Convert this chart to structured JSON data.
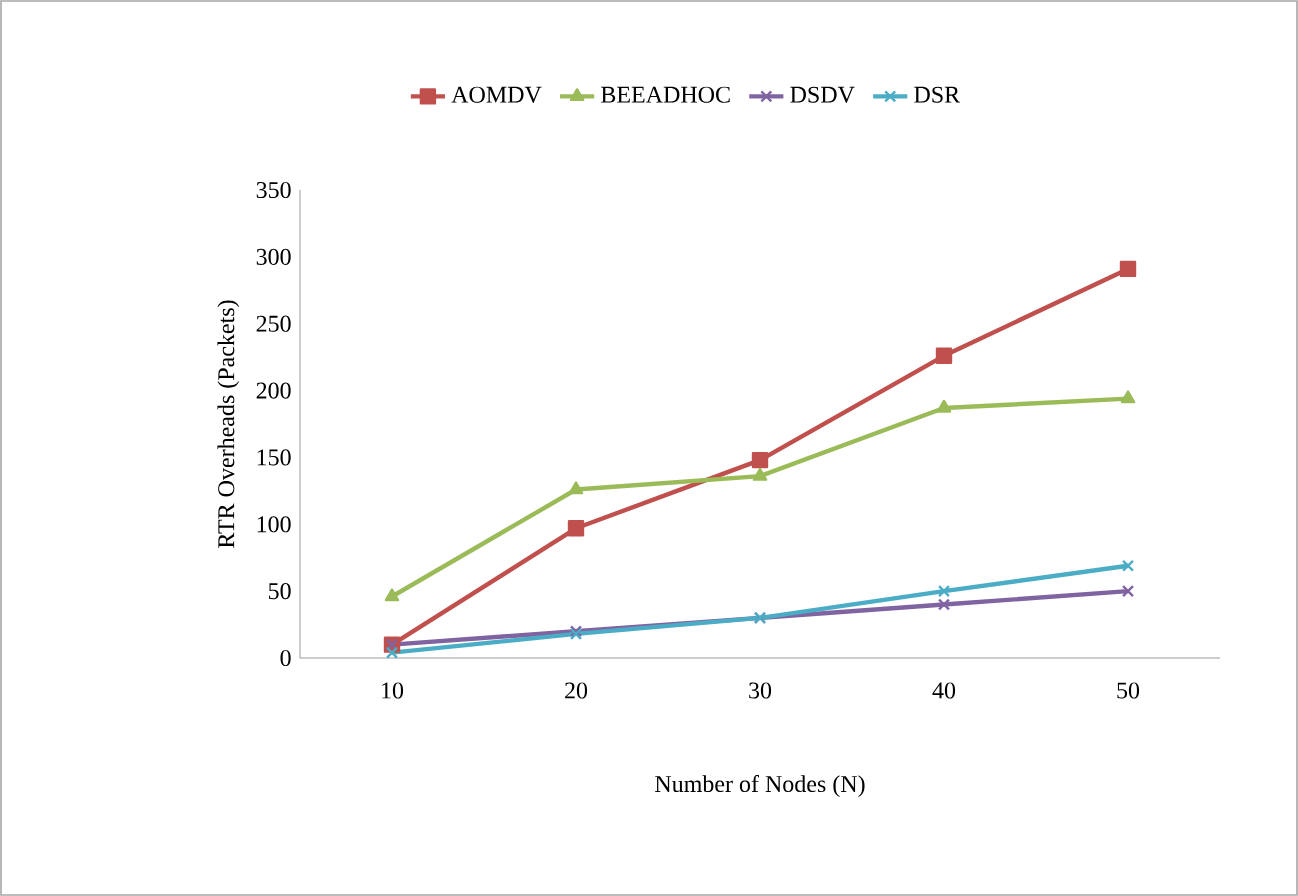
{
  "chart_data": {
    "type": "line",
    "xlabel": "Number of Nodes (N)",
    "ylabel": "RTR Overheads (Packets)",
    "categories": [
      "10",
      "20",
      "30",
      "40",
      "50"
    ],
    "series": [
      {
        "name": "AOMDV",
        "color": "#c0504d",
        "marker": "square",
        "values": [
          10,
          97,
          148,
          226,
          291
        ]
      },
      {
        "name": "BEEADHOC",
        "color": "#9bbb59",
        "marker": "triangle",
        "values": [
          46,
          126,
          136,
          187,
          194
        ]
      },
      {
        "name": "DSDV",
        "color": "#8064a2",
        "marker": "cross",
        "values": [
          10,
          20,
          30,
          40,
          50
        ]
      },
      {
        "name": "DSR",
        "color": "#4bacc6",
        "marker": "cross",
        "values": [
          4,
          18,
          30,
          50,
          69
        ]
      }
    ],
    "ylim": [
      0,
      350
    ],
    "yticks": [
      0,
      50,
      100,
      150,
      200,
      250,
      300,
      350
    ],
    "grid": false,
    "legend": "top"
  }
}
